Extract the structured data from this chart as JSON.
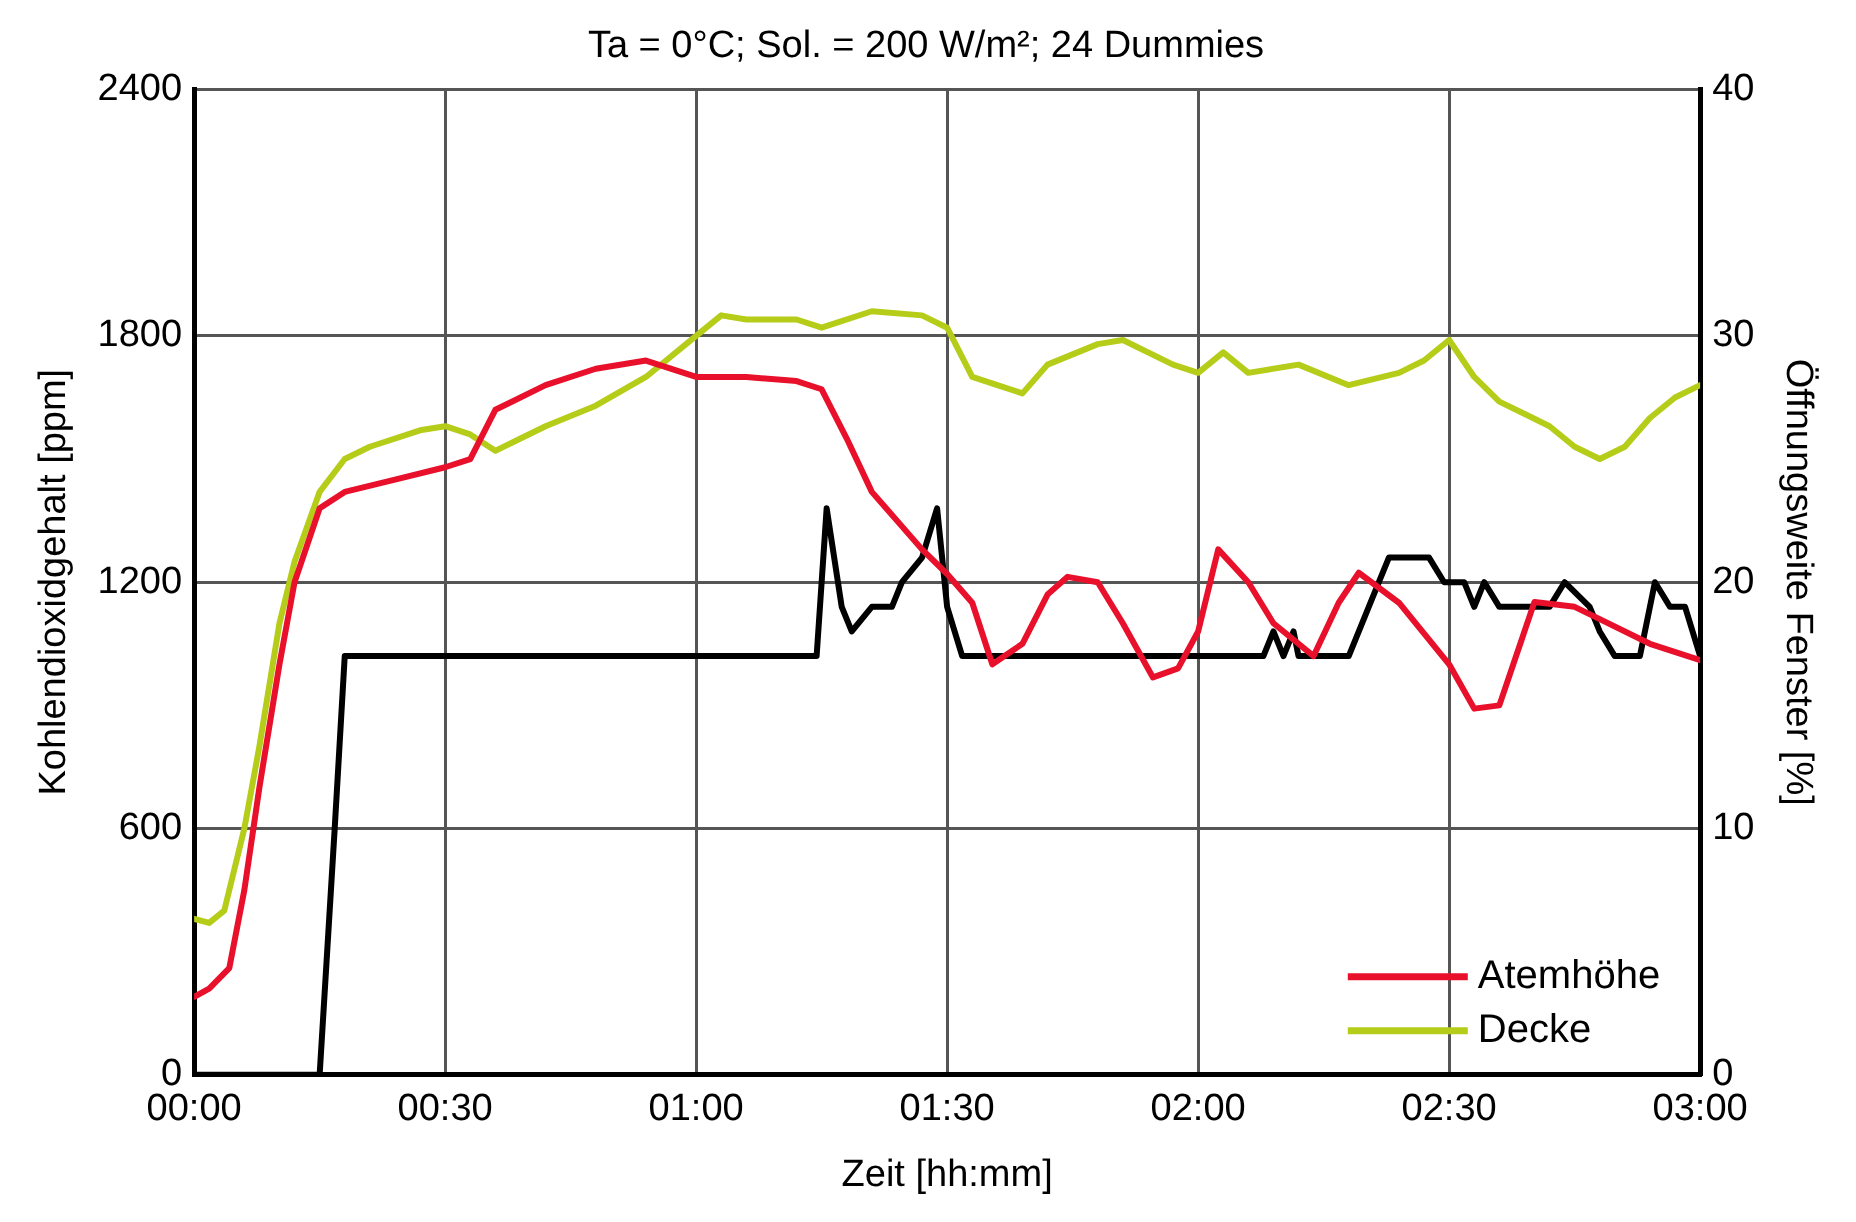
{
  "chart_data": {
    "type": "line",
    "title": "Ta = 0°C; Sol. = 200 W/m²; 24 Dummies",
    "xlabel": "Zeit [hh:mm]",
    "ylabel": "Kohlendioxidgehalt [ppm]",
    "y2label": "Öffnungsweite Fenster [%]",
    "xlim": [
      0,
      3
    ],
    "xticks": [
      {
        "value": 0,
        "label": "00:00"
      },
      {
        "value": 0.5,
        "label": "00:30"
      },
      {
        "value": 1,
        "label": "01:00"
      },
      {
        "value": 1.5,
        "label": "01:30"
      },
      {
        "value": 2,
        "label": "02:00"
      },
      {
        "value": 2.5,
        "label": "02:30"
      },
      {
        "value": 3,
        "label": "03:00"
      }
    ],
    "ylim": [
      0,
      2400
    ],
    "yticks": [
      0,
      600,
      1200,
      1800,
      2400
    ],
    "y2lim": [
      0,
      40
    ],
    "y2ticks": [
      0,
      10,
      20,
      30,
      40
    ],
    "grid": true,
    "legend": "bottom right",
    "marker": "none",
    "line_style": "solid",
    "series": [
      {
        "name": "Atemhöhe",
        "color": "#e8102a",
        "x": [
          0,
          0.03,
          0.07,
          0.1,
          0.13,
          0.17,
          0.2,
          0.25,
          0.3,
          0.4,
          0.5,
          0.55,
          0.6,
          0.7,
          0.8,
          0.9,
          1.0,
          1.1,
          1.2,
          1.25,
          1.3,
          1.35,
          1.4,
          1.45,
          1.5,
          1.55,
          1.59,
          1.65,
          1.7,
          1.74,
          1.8,
          1.85,
          1.91,
          1.96,
          2.0,
          2.04,
          2.1,
          2.15,
          2.23,
          2.28,
          2.32,
          2.4,
          2.5,
          2.55,
          2.6,
          2.67,
          2.75,
          2.8,
          2.9,
          3.0
        ],
        "values": [
          190,
          210,
          260,
          450,
          700,
          1000,
          1200,
          1380,
          1420,
          1450,
          1480,
          1500,
          1620,
          1680,
          1720,
          1740,
          1700,
          1700,
          1690,
          1670,
          1550,
          1420,
          1350,
          1280,
          1220,
          1150,
          1000,
          1050,
          1170,
          1213,
          1200,
          1100,
          968,
          990,
          1080,
          1280,
          1200,
          1100,
          1020,
          1150,
          1223,
          1150,
          1000,
          892,
          900,
          1152,
          1140,
          1110,
          1050,
          1010
        ]
      },
      {
        "name": "Decke",
        "color": "#b5cc18",
        "x": [
          0,
          0.03,
          0.06,
          0.1,
          0.13,
          0.17,
          0.2,
          0.25,
          0.3,
          0.35,
          0.45,
          0.5,
          0.55,
          0.6,
          0.7,
          0.8,
          0.9,
          1.0,
          1.05,
          1.1,
          1.2,
          1.25,
          1.35,
          1.45,
          1.5,
          1.55,
          1.6,
          1.65,
          1.7,
          1.8,
          1.85,
          1.95,
          2.0,
          2.05,
          2.1,
          2.2,
          2.3,
          2.4,
          2.45,
          2.5,
          2.55,
          2.6,
          2.7,
          2.75,
          2.8,
          2.85,
          2.9,
          2.95,
          3.0
        ],
        "values": [
          380,
          370,
          400,
          600,
          800,
          1100,
          1250,
          1420,
          1500,
          1530,
          1570,
          1580,
          1560,
          1520,
          1580,
          1630,
          1700,
          1800,
          1850,
          1840,
          1840,
          1820,
          1860,
          1850,
          1820,
          1700,
          1680,
          1660,
          1730,
          1780,
          1790,
          1730,
          1710,
          1760,
          1710,
          1730,
          1680,
          1710,
          1740,
          1790,
          1700,
          1640,
          1580,
          1530,
          1500,
          1530,
          1600,
          1650,
          1680
        ]
      },
      {
        "color": "#000000",
        "axis": "y2",
        "x": [
          0,
          0.25,
          0.28,
          0.3,
          0.35,
          1.24,
          1.26,
          1.29,
          1.31,
          1.35,
          1.39,
          1.41,
          1.45,
          1.48,
          1.5,
          1.53,
          2.13,
          2.15,
          2.17,
          2.19,
          2.2,
          2.3,
          2.36,
          2.38,
          2.46,
          2.49,
          2.53,
          2.55,
          2.57,
          2.6,
          2.7,
          2.73,
          2.78,
          2.8,
          2.83,
          2.88,
          2.91,
          2.94,
          2.97,
          3.0
        ],
        "values": [
          0,
          0,
          10,
          17,
          17,
          17,
          23,
          19,
          18,
          19,
          19,
          20,
          21,
          23,
          19,
          17,
          17,
          18,
          17,
          18,
          17,
          17,
          20,
          21,
          21,
          20,
          20,
          19,
          20,
          19,
          19,
          20,
          19,
          18,
          17,
          17,
          20,
          19,
          19,
          17
        ]
      }
    ]
  }
}
